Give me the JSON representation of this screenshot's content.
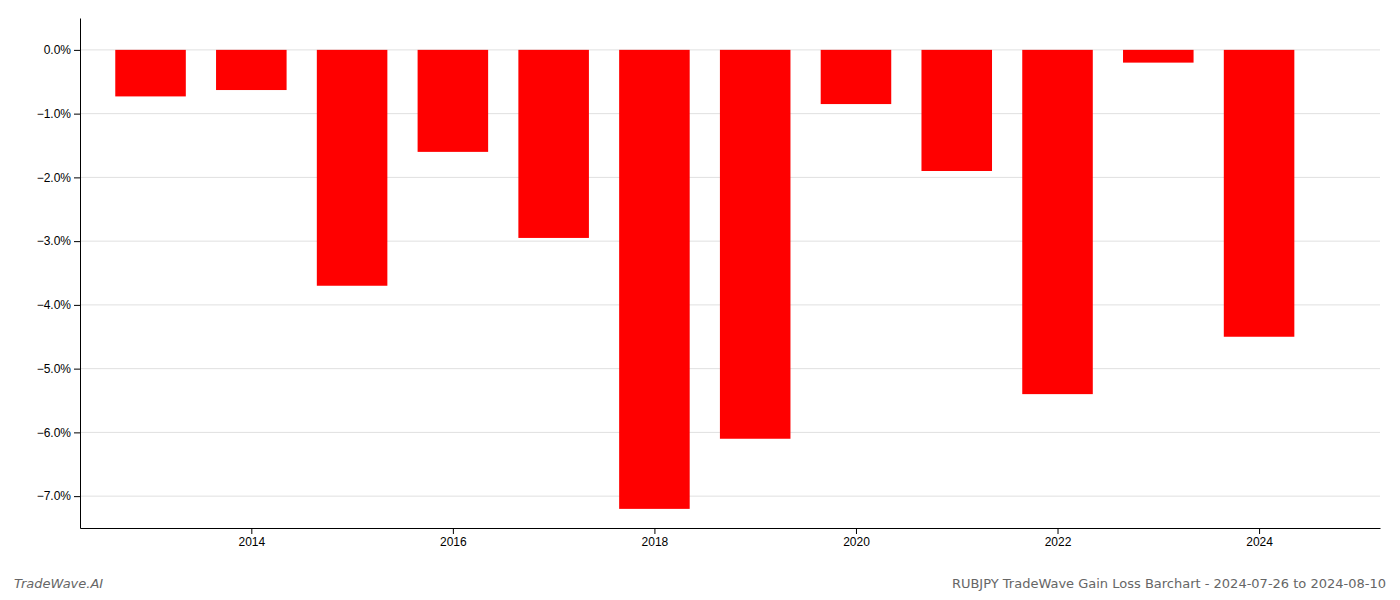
{
  "chart_data": {
    "type": "bar",
    "title": "RUBJPY TradeWave Gain Loss Barchart - 2024-07-26 to 2024-08-10",
    "annotations": [
      "TradeWave.AI"
    ],
    "x": [
      2013,
      2014,
      2015,
      2016,
      2017,
      2018,
      2019,
      2020,
      2021,
      2022,
      2023,
      2024
    ],
    "values": [
      -0.0073,
      -0.0063,
      -0.037,
      -0.016,
      -0.0295,
      -0.072,
      -0.061,
      -0.0085,
      -0.019,
      -0.054,
      -0.002,
      -0.045
    ],
    "color": "#ff0000",
    "xlim": [
      2012.3,
      2025.2
    ],
    "xticks": [
      2014,
      2016,
      2018,
      2020,
      2022,
      2024
    ],
    "ylim": [
      -0.075,
      0.005
    ],
    "yticks": [
      {
        "value": -0.07,
        "label": "−7.0%"
      },
      {
        "value": -0.06,
        "label": "−6.0%"
      },
      {
        "value": -0.05,
        "label": "−5.0%"
      },
      {
        "value": -0.04,
        "label": "−4.0%"
      },
      {
        "value": -0.03,
        "label": "−3.0%"
      },
      {
        "value": -0.02,
        "label": "−2.0%"
      },
      {
        "value": -0.01,
        "label": "−1.0%"
      },
      {
        "value": 0,
        "label": "0.0%"
      }
    ],
    "grid": true
  }
}
